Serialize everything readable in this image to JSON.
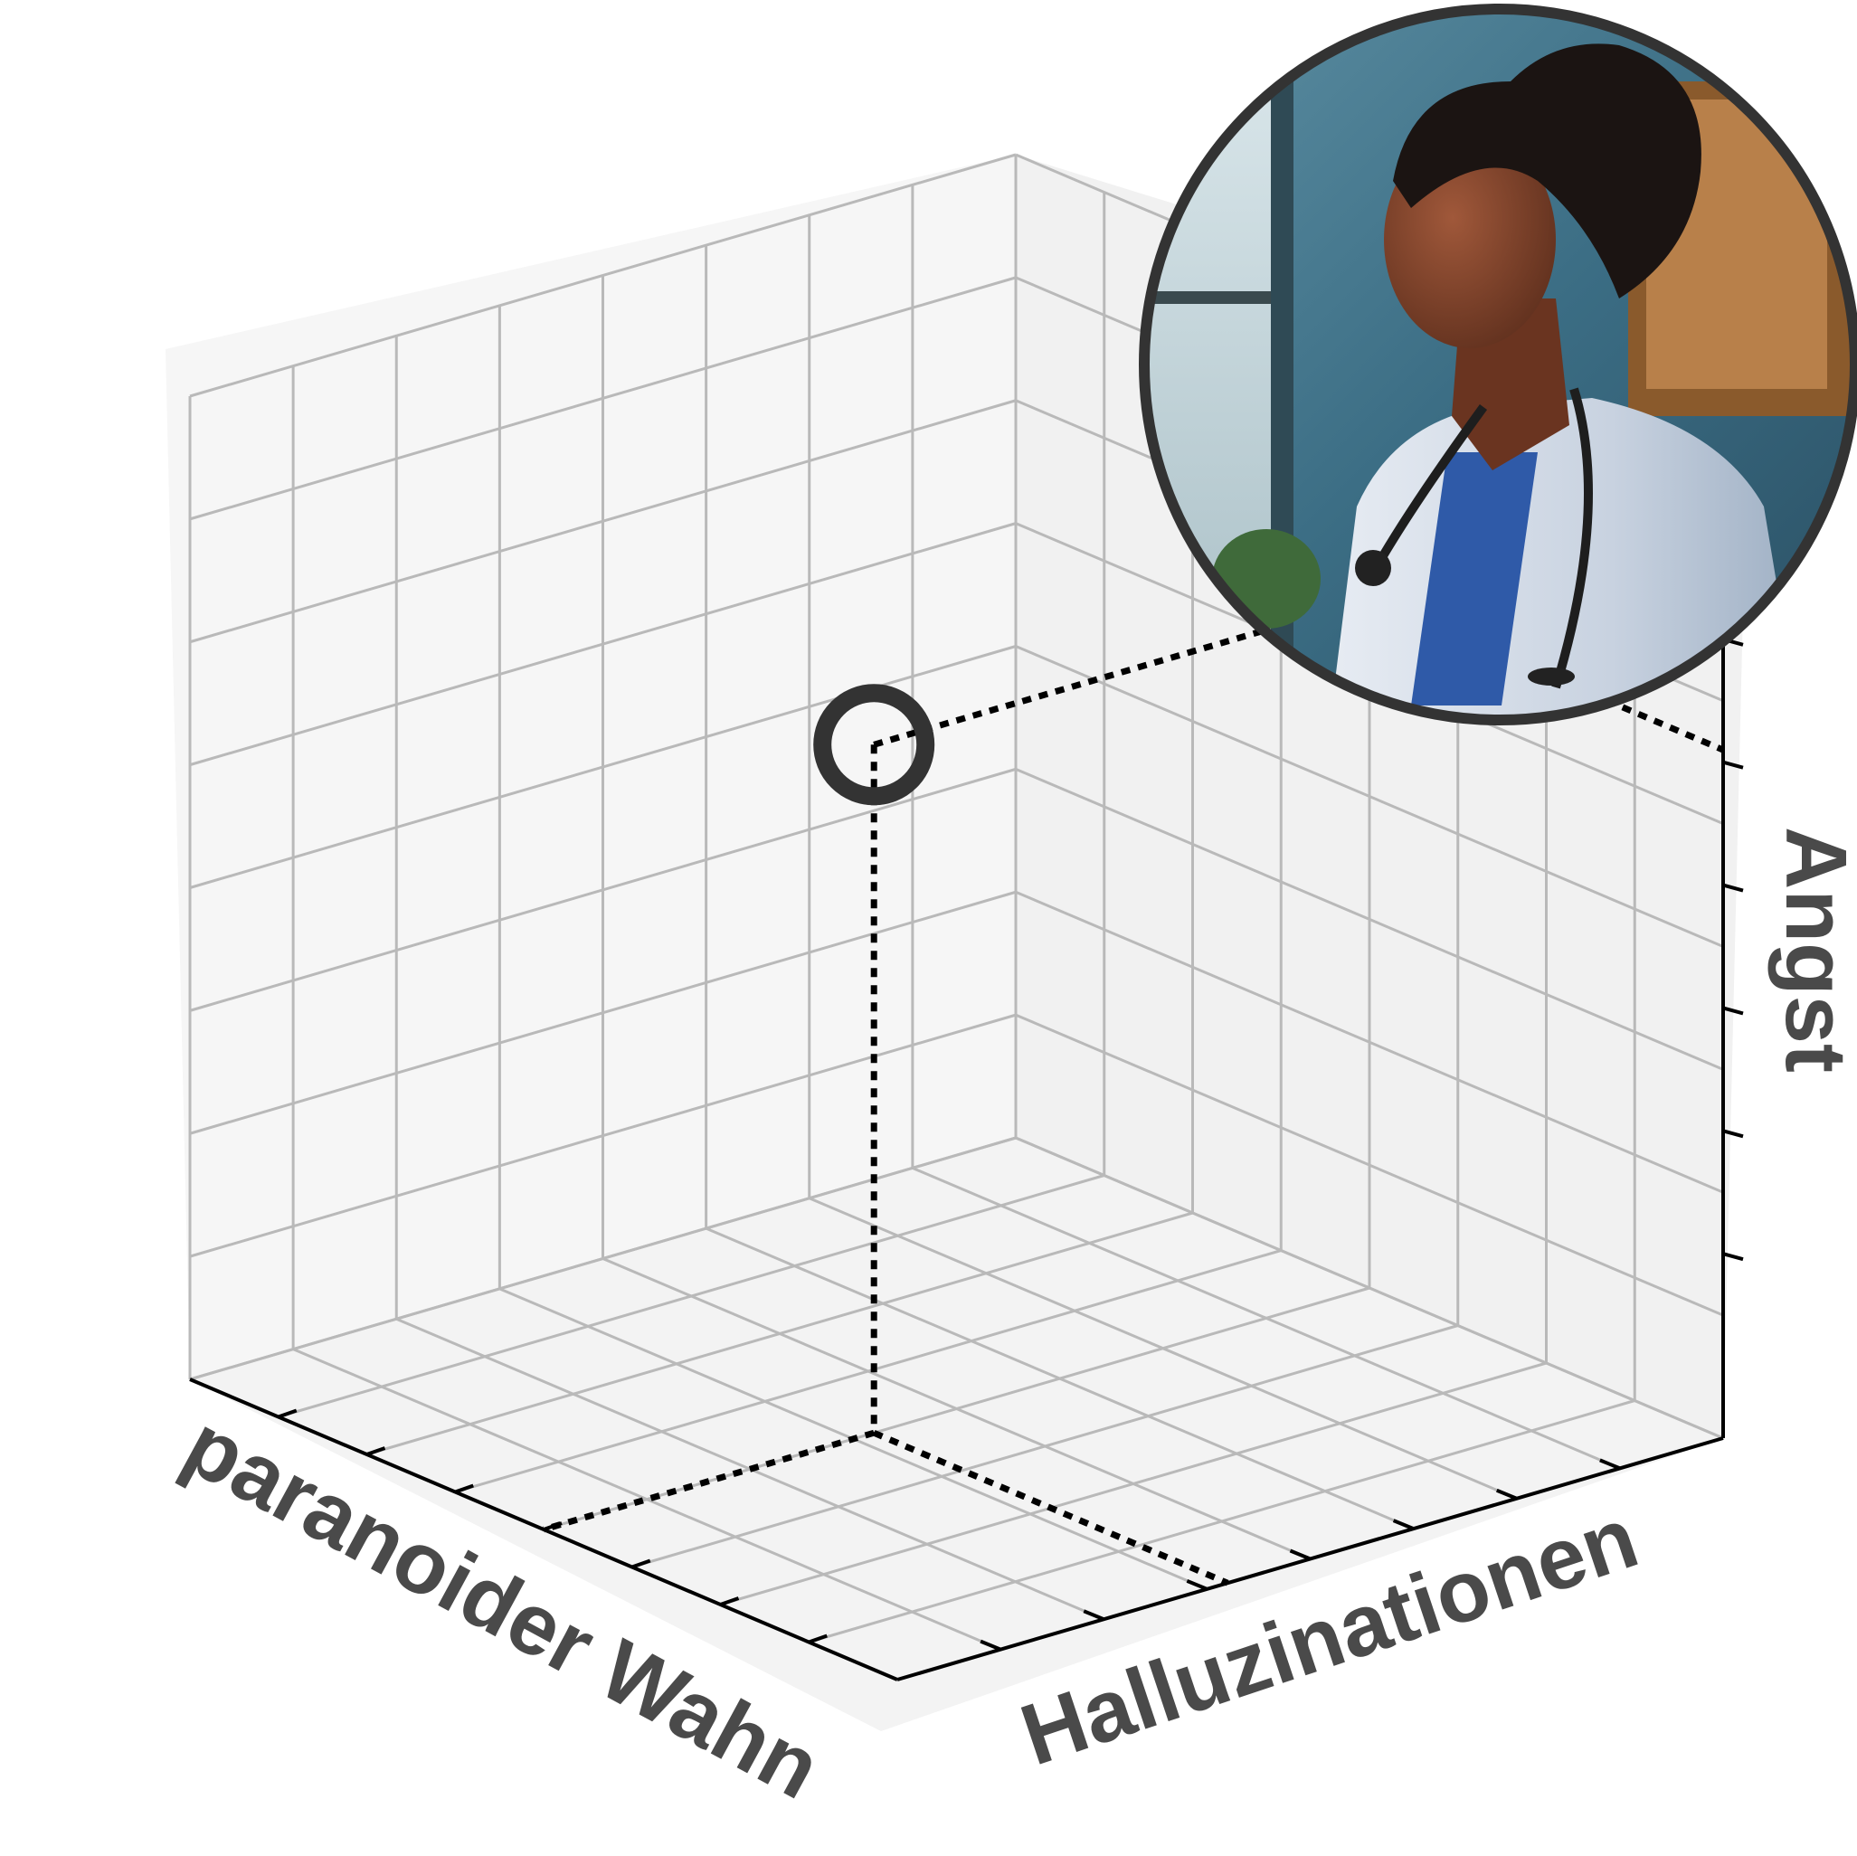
{
  "chart_data": {
    "type": "scatter",
    "projection": "3d",
    "axes": {
      "x": {
        "label": "paranoider Wahn",
        "ticks": 7,
        "tick_labels": []
      },
      "y": {
        "label": "Halluzinationen",
        "ticks": 7,
        "tick_labels": []
      },
      "z": {
        "label": "Angst",
        "ticks": 6,
        "tick_labels": []
      }
    },
    "range": [
      0,
      8
    ],
    "grid": true,
    "points": [
      {
        "x": 4.8,
        "y": 4.0,
        "z": 5.6,
        "marker": "open-circle",
        "projection_lines": "dotted"
      }
    ],
    "colors": {
      "grid": "#b9b9b9",
      "pane_left": "#f6f6f6",
      "pane_right": "#f1f1f1",
      "pane_floor": "#f3f3f3",
      "axis": "#000000",
      "marker": "#333333",
      "label": "#4a4a4a",
      "inset_border": "#333333"
    }
  },
  "inset": {
    "image_name": "doctor-portrait",
    "description_icon": "doctor-with-stethoscope-icon"
  }
}
